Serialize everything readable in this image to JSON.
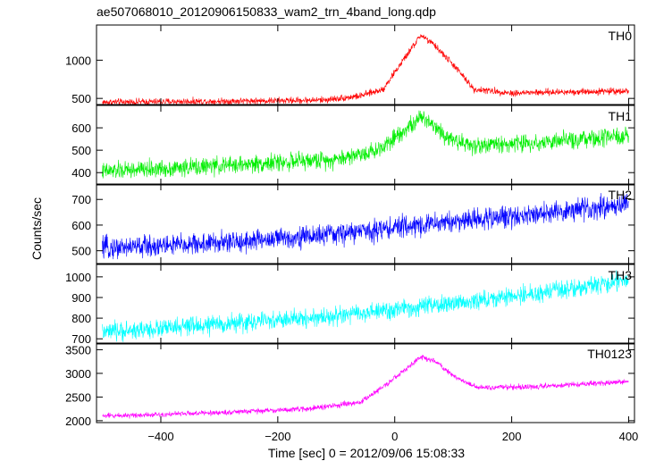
{
  "chart_data": {
    "type": "line",
    "title": "ae507068010_20120906150833_wam2_trn_4band_long.qdp",
    "xlabel": "Time [sec] 0 = 2012/09/06 15:08:33",
    "ylabel": "Counts/sec",
    "xlim": [
      -510,
      410
    ],
    "xticks": [
      -400,
      -200,
      0,
      200,
      400
    ],
    "xtick_labels": [
      "−400",
      "−200",
      "0",
      "200",
      "400"
    ],
    "grid": false,
    "panels": [
      {
        "label": "TH0",
        "color": "#ff0000",
        "ylim": [
          420,
          1460
        ],
        "yticks": [
          500,
          1000
        ],
        "noise": 40,
        "trend": [
          [
            -500,
            450
          ],
          [
            -200,
            470
          ],
          [
            -120,
            480
          ],
          [
            -60,
            530
          ],
          [
            -20,
            620
          ],
          [
            10,
            950
          ],
          [
            45,
            1330
          ],
          [
            70,
            1180
          ],
          [
            105,
            900
          ],
          [
            135,
            620
          ],
          [
            200,
            570
          ],
          [
            400,
            600
          ]
        ]
      },
      {
        "label": "TH1",
        "color": "#00ee00",
        "ylim": [
          345,
          700
        ],
        "yticks": [
          400,
          500,
          600
        ],
        "noise": 35,
        "trend": [
          [
            -500,
            405
          ],
          [
            -300,
            430
          ],
          [
            -100,
            460
          ],
          [
            -30,
            500
          ],
          [
            10,
            580
          ],
          [
            50,
            650
          ],
          [
            90,
            560
          ],
          [
            130,
            520
          ],
          [
            250,
            535
          ],
          [
            400,
            560
          ]
        ]
      },
      {
        "label": "TH2",
        "color": "#0000ff",
        "ylim": [
          450,
          760
        ],
        "yticks": [
          500,
          600,
          700
        ],
        "noise": 38,
        "trend": [
          [
            -500,
            510
          ],
          [
            -300,
            530
          ],
          [
            -100,
            565
          ],
          [
            100,
            615
          ],
          [
            300,
            655
          ],
          [
            400,
            685
          ]
        ]
      },
      {
        "label": "TH3",
        "color": "#00ffff",
        "ylim": [
          675,
          1060
        ],
        "yticks": [
          700,
          800,
          900,
          1000
        ],
        "noise": 40,
        "trend": [
          [
            -500,
            730
          ],
          [
            -300,
            770
          ],
          [
            -100,
            810
          ],
          [
            100,
            870
          ],
          [
            300,
            940
          ],
          [
            400,
            985
          ]
        ]
      },
      {
        "label": "TH0123",
        "color": "#ff00ff",
        "ylim": [
          1960,
          3640
        ],
        "yticks": [
          2000,
          2500,
          3000,
          3500
        ],
        "noise": 50,
        "trend": [
          [
            -500,
            2100
          ],
          [
            -300,
            2170
          ],
          [
            -150,
            2250
          ],
          [
            -60,
            2380
          ],
          [
            -10,
            2800
          ],
          [
            45,
            3350
          ],
          [
            70,
            3250
          ],
          [
            100,
            2950
          ],
          [
            140,
            2700
          ],
          [
            250,
            2720
          ],
          [
            400,
            2830
          ]
        ]
      }
    ]
  }
}
